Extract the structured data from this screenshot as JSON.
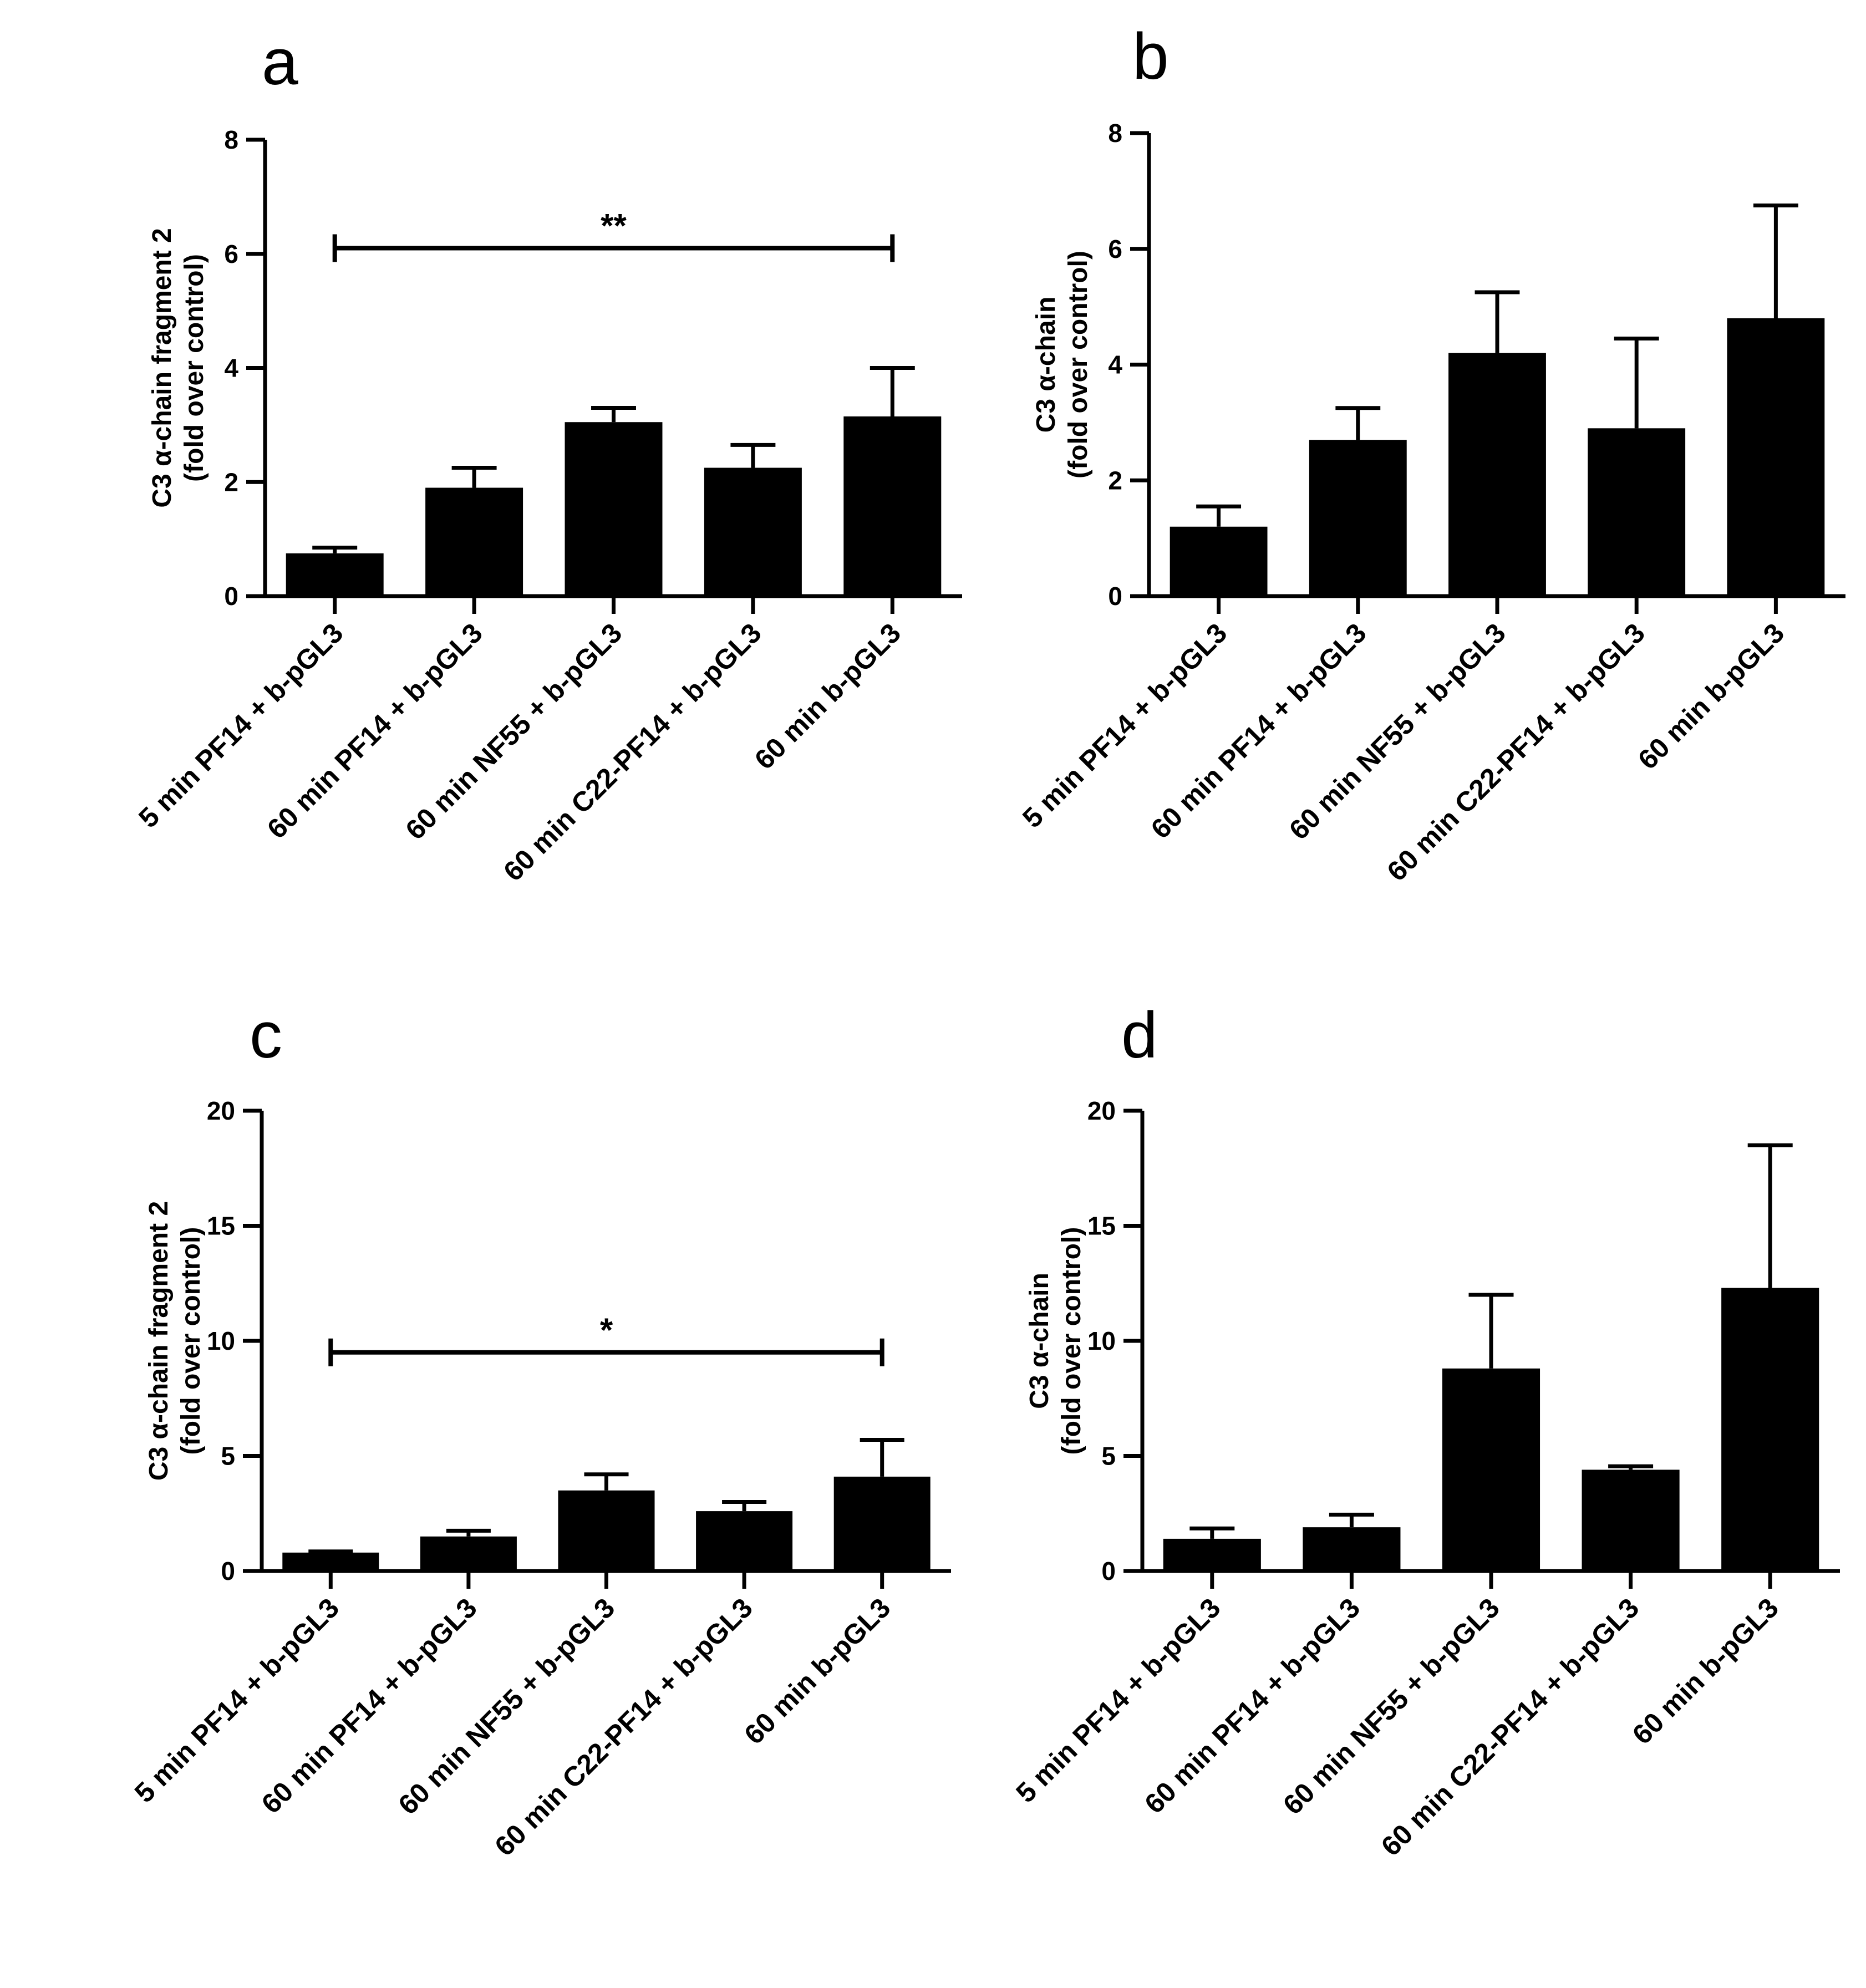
{
  "chart_data": [
    {
      "panel": "a",
      "type": "bar",
      "categories": [
        "5 min PF14 + b-pGL3",
        "60 min PF14 + b-pGL3",
        "60 min NF55 + b-pGL3",
        "60 min C22-PF14 + b-pGL3",
        "60 min b-pGL3"
      ],
      "values": [
        0.75,
        1.9,
        3.05,
        2.25,
        3.15
      ],
      "errors": [
        0.1,
        0.35,
        0.25,
        0.4,
        0.85
      ],
      "ylabel": [
        "C3 α-chain fragment 2",
        "(fold over control)"
      ],
      "ylim": [
        0,
        8
      ],
      "yticks": [
        0,
        2,
        4,
        6,
        8
      ],
      "significance": {
        "label": "**",
        "from": 0,
        "to": 4,
        "y": 6.1
      }
    },
    {
      "panel": "b",
      "type": "bar",
      "categories": [
        "5 min PF14 + b-pGL3",
        "60 min PF14 + b-pGL3",
        "60 min NF55 + b-pGL3",
        "60 min C22-PF14 + b-pGL3",
        "60 min b-pGL3"
      ],
      "values": [
        1.2,
        2.7,
        4.2,
        2.9,
        4.8
      ],
      "errors": [
        0.35,
        0.55,
        1.05,
        1.55,
        1.95
      ],
      "ylabel": [
        "C3 α-chain",
        "(fold over control)"
      ],
      "ylim": [
        0,
        8
      ],
      "yticks": [
        0,
        2,
        4,
        6,
        8
      ],
      "significance": null
    },
    {
      "panel": "c",
      "type": "bar",
      "categories": [
        "5 min PF14 + b-pGL3",
        "60 min PF14 + b-pGL3",
        "60 min NF55 + b-pGL3",
        "60 min C22-PF14 + b-pGL3",
        "60 min b-pGL3"
      ],
      "values": [
        0.8,
        1.5,
        3.5,
        2.6,
        4.1
      ],
      "errors": [
        0.05,
        0.25,
        0.7,
        0.4,
        1.6
      ],
      "ylabel": [
        "C3 α-chain fragment 2",
        "(fold over control)"
      ],
      "ylim": [
        0,
        20
      ],
      "yticks": [
        0,
        5,
        10,
        15,
        20
      ],
      "significance": {
        "label": "*",
        "from": 0,
        "to": 4,
        "y": 9.5
      }
    },
    {
      "panel": "d",
      "type": "bar",
      "categories": [
        "5 min PF14 + b-pGL3",
        "60 min PF14 + b-pGL3",
        "60 min NF55 + b-pGL3",
        "60 min C22-PF14 + b-pGL3",
        "60 min b-pGL3"
      ],
      "values": [
        1.4,
        1.9,
        8.8,
        4.4,
        12.3
      ],
      "errors": [
        0.45,
        0.55,
        3.2,
        0.15,
        6.2
      ],
      "ylabel": [
        "C3 α-chain",
        "(fold over control)"
      ],
      "ylim": [
        0,
        20
      ],
      "yticks": [
        0,
        5,
        10,
        15,
        20
      ],
      "significance": null
    }
  ]
}
